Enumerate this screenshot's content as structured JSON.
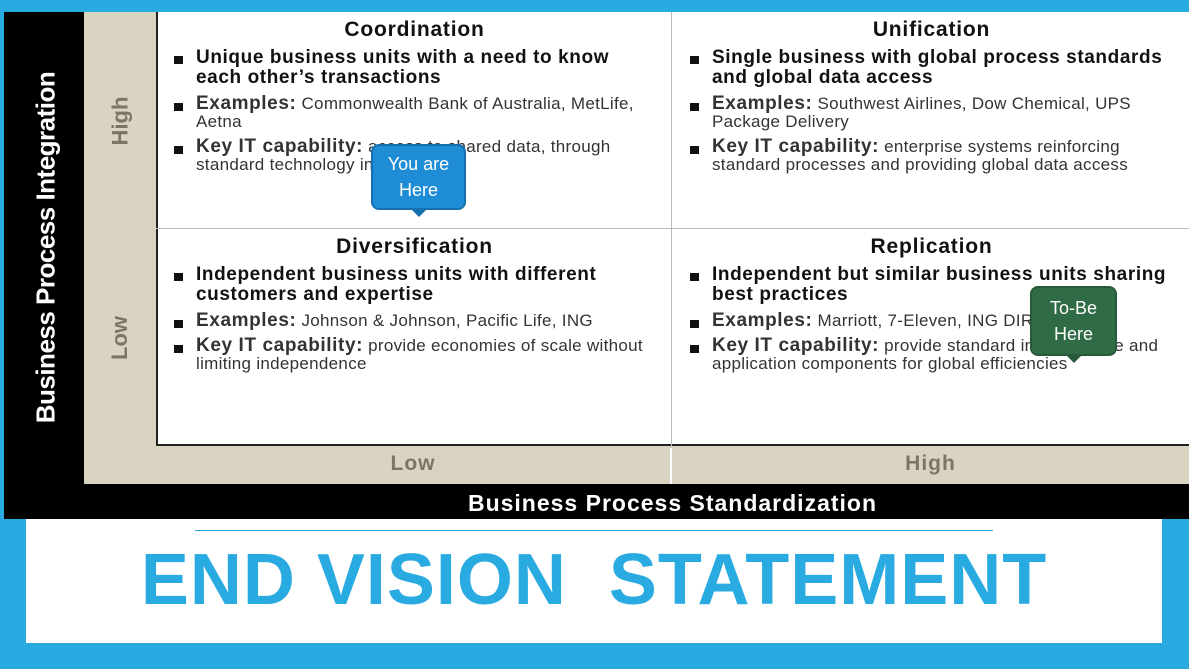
{
  "y_axis": {
    "label": "Business Process Integration",
    "high": "High",
    "low": "Low"
  },
  "x_axis": {
    "label": "Business Process Standardization",
    "low": "Low",
    "high": "High"
  },
  "quadrants": {
    "coordination": {
      "title": "Coordination",
      "description": "Unique business units with a need to know each other’s transactions",
      "examples_label": "Examples:",
      "examples": "Commonwealth Bank of Australia, MetLife, Aetna",
      "it_label": "Key IT capability:",
      "it_text": "access to shared data, through standard technology interfaces"
    },
    "unification": {
      "title": "Unification",
      "description": "Single business with global process standards and global data access",
      "examples_label": "Examples:",
      "examples": "Southwest Airlines, Dow Chemical, UPS Package Delivery",
      "it_label": "Key IT capability:",
      "it_text": "enterprise systems reinforcing standard processes and providing global data access"
    },
    "diversification": {
      "title": "Diversification",
      "description": "Independent business units with different customers and expertise",
      "examples_label": "Examples:",
      "examples": "Johnson & Johnson, Pacific Life, ING",
      "it_label": "Key IT capability:",
      "it_text": "provide economies of scale without limiting independence"
    },
    "replication": {
      "title": "Replication",
      "description": "Independent but similar business units sharing best practices",
      "examples_label": "Examples:",
      "examples": "Marriott, 7-Eleven, ING DIRECT",
      "it_label": "Key IT capability:",
      "it_text": "provide standard infrastructure and application components for global efficiencies"
    }
  },
  "callouts": {
    "you_are_here": "You are Here",
    "to_be_here": "To-Be Here"
  },
  "slide_title": "END VISION  STATEMENT",
  "colors": {
    "frame": "#29abe2",
    "you_callout": "#1f8dd6",
    "tobe_callout": "#2f6b45",
    "axis_tan": "#d9d4c2"
  }
}
